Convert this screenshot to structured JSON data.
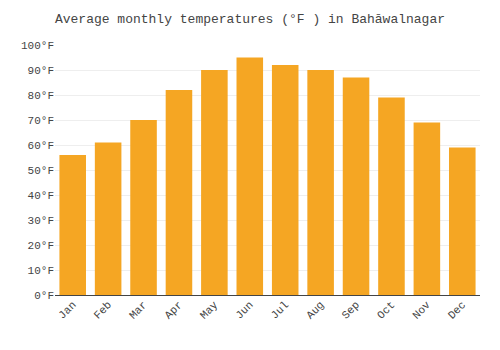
{
  "chart_data": {
    "type": "bar",
    "title": "Average monthly temperatures (°F ) in Bahāwalnagar",
    "categories": [
      "Jan",
      "Feb",
      "Mar",
      "Apr",
      "May",
      "Jun",
      "Jul",
      "Aug",
      "Sep",
      "Oct",
      "Nov",
      "Dec"
    ],
    "values": [
      56,
      61,
      70,
      82,
      90,
      95,
      92,
      90,
      87,
      79,
      69,
      59
    ],
    "color": "#F5A623",
    "ylim": [
      0,
      100
    ],
    "yticks": [
      {
        "value": 0,
        "label": "0°F"
      },
      {
        "value": 10,
        "label": "10°F"
      },
      {
        "value": 20,
        "label": "20°F"
      },
      {
        "value": 30,
        "label": "30°F"
      },
      {
        "value": 40,
        "label": "40°F"
      },
      {
        "value": 50,
        "label": "50°F"
      },
      {
        "value": 60,
        "label": "60°F"
      },
      {
        "value": 70,
        "label": "70°F"
      },
      {
        "value": 80,
        "label": "80°F"
      },
      {
        "value": 90,
        "label": "90°F"
      },
      {
        "value": 100,
        "label": "100°F"
      }
    ],
    "grid": true
  }
}
